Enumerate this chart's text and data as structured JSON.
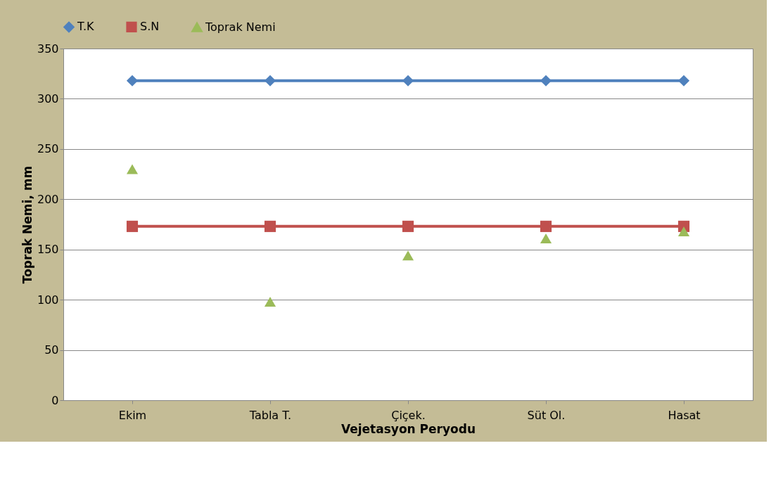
{
  "chart_data": {
    "type": "line",
    "xlabel": "Vejetasyon Peryodu",
    "ylabel": "Toprak Nemi, mm",
    "categories": [
      "Ekim",
      "Tabla T.",
      "Çiçek.",
      "Süt Ol.",
      "Hasat"
    ],
    "series": [
      {
        "name": "T.K",
        "marker": "diamond",
        "color": "#4f81bd",
        "values": [
          318,
          318,
          318,
          318,
          318
        ]
      },
      {
        "name": "S.N",
        "marker": "square",
        "color": "#c0504d",
        "values": [
          173,
          173,
          173,
          173,
          173
        ]
      },
      {
        "name": "Toprak Nemi",
        "type": "scatter",
        "marker": "triangle",
        "color": "#9bbb59",
        "values": [
          230,
          98,
          144,
          161,
          168
        ]
      }
    ],
    "ylim": [
      0,
      350
    ],
    "yticks": [
      0,
      50,
      100,
      150,
      200,
      250,
      300,
      350
    ],
    "grid": "y",
    "legend": "top"
  }
}
